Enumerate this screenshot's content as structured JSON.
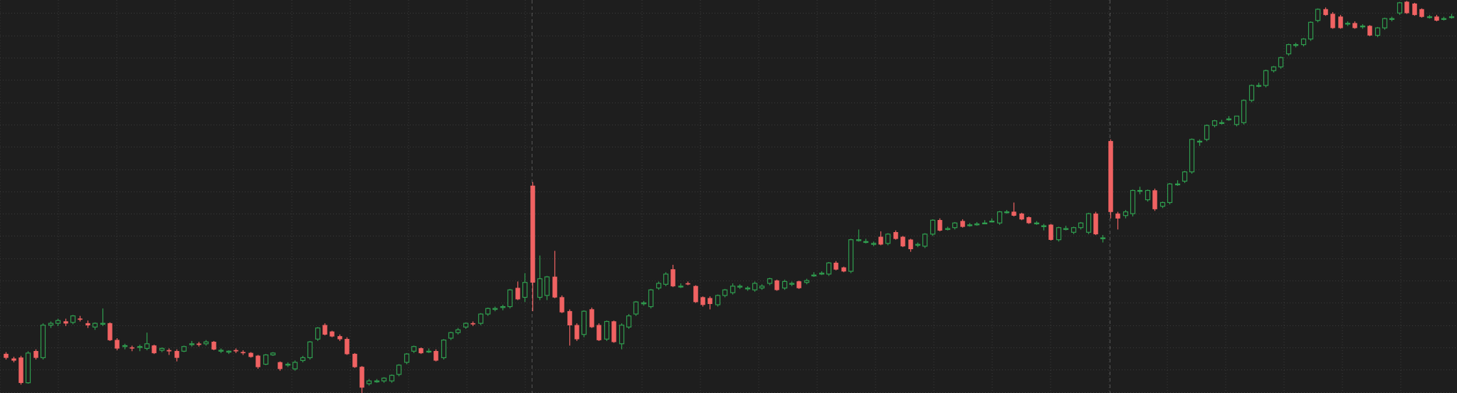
{
  "chart_data": {
    "type": "candlestick",
    "up_color": "#2f9e4f",
    "down_color": "#f06262",
    "up_hollow": true,
    "grid": true,
    "grid_color": "#3a3a3a",
    "ylim": [
      0,
      423
    ],
    "yticks": [
      1,
      25,
      49,
      73,
      97,
      121,
      145,
      169,
      193,
      217,
      241,
      265,
      289,
      313,
      337,
      361,
      385,
      409
    ],
    "candles": [
      [
        42,
        44,
        36,
        38
      ],
      [
        37,
        39,
        33,
        35
      ],
      [
        38,
        40,
        9,
        11
      ],
      [
        11,
        45,
        10,
        43
      ],
      [
        45,
        47,
        36,
        38
      ],
      [
        38,
        75,
        36,
        73
      ],
      [
        73,
        77,
        70,
        75
      ],
      [
        75,
        80,
        72,
        78
      ],
      [
        77,
        80,
        72,
        75
      ],
      [
        76,
        84,
        74,
        83
      ],
      [
        80,
        83,
        77,
        79
      ],
      [
        75,
        78,
        70,
        73
      ],
      [
        71,
        76,
        68,
        75
      ],
      [
        74,
        91,
        72,
        75
      ],
      [
        75,
        76,
        56,
        57
      ],
      [
        57,
        59,
        46,
        48
      ],
      [
        50,
        53,
        47,
        51
      ],
      [
        49,
        51,
        45,
        48
      ],
      [
        49,
        52,
        45,
        50
      ],
      [
        48,
        65,
        46,
        53
      ],
      [
        51,
        52,
        42,
        43
      ],
      [
        46,
        49,
        44,
        48
      ],
      [
        46,
        48,
        41,
        45
      ],
      [
        45,
        47,
        34,
        38
      ],
      [
        45,
        51,
        44,
        50
      ],
      [
        52,
        56,
        50,
        53
      ],
      [
        53,
        55,
        50,
        52
      ],
      [
        53,
        57,
        51,
        55
      ],
      [
        55,
        56,
        46,
        47
      ],
      [
        45,
        48,
        43,
        46
      ],
      [
        44,
        46,
        42,
        45
      ],
      [
        46,
        48,
        43,
        45
      ],
      [
        44,
        46,
        41,
        43
      ],
      [
        43,
        44,
        38,
        39
      ],
      [
        40,
        41,
        26,
        28
      ],
      [
        31,
        42,
        30,
        41
      ],
      [
        41,
        44,
        40,
        43
      ],
      [
        33,
        34,
        24,
        26
      ],
      [
        30,
        33,
        28,
        31
      ],
      [
        26,
        35,
        24,
        33
      ],
      [
        35,
        40,
        33,
        38
      ],
      [
        38,
        56,
        36,
        55
      ],
      [
        58,
        71,
        56,
        70
      ],
      [
        73,
        75,
        62,
        63
      ],
      [
        66,
        67,
        60,
        61
      ],
      [
        61,
        63,
        56,
        58
      ],
      [
        58,
        60,
        41,
        42
      ],
      [
        42,
        43,
        27,
        28
      ],
      [
        28,
        29,
        0,
        6
      ],
      [
        10,
        15,
        8,
        13
      ],
      [
        12,
        15,
        11,
        13
      ],
      [
        13,
        17,
        11,
        16
      ],
      [
        13,
        20,
        11,
        19
      ],
      [
        20,
        31,
        18,
        30
      ],
      [
        33,
        43,
        31,
        42
      ],
      [
        45,
        51,
        43,
        50
      ],
      [
        48,
        49,
        42,
        43
      ],
      [
        45,
        48,
        43,
        45
      ],
      [
        45,
        47,
        34,
        35
      ],
      [
        38,
        58,
        36,
        57
      ],
      [
        59,
        66,
        57,
        65
      ],
      [
        65,
        70,
        63,
        68
      ],
      [
        71,
        76,
        69,
        75
      ],
      [
        75,
        77,
        72,
        74
      ],
      [
        75,
        86,
        73,
        85
      ],
      [
        85,
        92,
        83,
        91
      ],
      [
        90,
        93,
        88,
        91
      ],
      [
        92,
        95,
        89,
        93
      ],
      [
        93,
        112,
        91,
        111
      ],
      [
        113,
        120,
        100,
        101
      ],
      [
        103,
        129,
        98,
        119
      ],
      [
        223,
        227,
        88,
        119
      ],
      [
        103,
        148,
        100,
        123
      ],
      [
        105,
        126,
        100,
        125
      ],
      [
        125,
        153,
        102,
        103
      ],
      [
        103,
        105,
        86,
        87
      ],
      [
        88,
        90,
        51,
        73
      ],
      [
        73,
        75,
        56,
        58
      ],
      [
        63,
        89,
        60,
        88
      ],
      [
        90,
        92,
        70,
        71
      ],
      [
        73,
        75,
        56,
        57
      ],
      [
        58,
        78,
        56,
        77
      ],
      [
        77,
        78,
        54,
        55
      ],
      [
        53,
        75,
        47,
        73
      ],
      [
        71,
        85,
        69,
        83
      ],
      [
        85,
        99,
        83,
        98
      ],
      [
        96,
        99,
        94,
        97
      ],
      [
        93,
        112,
        91,
        111
      ],
      [
        113,
        120,
        111,
        118
      ],
      [
        117,
        130,
        115,
        128
      ],
      [
        133,
        138,
        114,
        115
      ],
      [
        115,
        118,
        113,
        115
      ],
      [
        118,
        120,
        116,
        117
      ],
      [
        115,
        116,
        97,
        98
      ],
      [
        103,
        104,
        93,
        95
      ],
      [
        102,
        104,
        90,
        96
      ],
      [
        95,
        106,
        93,
        105
      ],
      [
        105,
        112,
        103,
        111
      ],
      [
        108,
        118,
        106,
        115
      ],
      [
        114,
        117,
        112,
        115
      ],
      [
        112,
        115,
        110,
        113
      ],
      [
        111,
        120,
        109,
        118
      ],
      [
        113,
        117,
        111,
        115
      ],
      [
        118,
        124,
        116,
        123
      ],
      [
        121,
        122,
        110,
        111
      ],
      [
        113,
        122,
        111,
        120
      ],
      [
        117,
        120,
        115,
        118
      ],
      [
        120,
        121,
        112,
        113
      ],
      [
        119,
        123,
        117,
        121
      ],
      [
        126,
        130,
        125,
        127
      ],
      [
        128,
        131,
        127,
        129
      ],
      [
        128,
        141,
        126,
        140
      ],
      [
        140,
        142,
        132,
        133
      ],
      [
        135,
        136,
        130,
        131
      ],
      [
        131,
        166,
        129,
        165
      ],
      [
        164,
        176,
        163,
        165
      ],
      [
        163,
        166,
        161,
        163
      ],
      [
        160,
        163,
        158,
        161
      ],
      [
        168,
        174,
        159,
        160
      ],
      [
        161,
        172,
        159,
        171
      ],
      [
        173,
        175,
        165,
        166
      ],
      [
        168,
        169,
        157,
        158
      ],
      [
        165,
        166,
        152,
        155
      ],
      [
        159,
        162,
        157,
        160
      ],
      [
        158,
        172,
        156,
        171
      ],
      [
        171,
        187,
        169,
        186
      ],
      [
        186,
        188,
        174,
        175
      ],
      [
        176,
        179,
        175,
        177
      ],
      [
        178,
        184,
        176,
        183
      ],
      [
        185,
        187,
        178,
        179
      ],
      [
        181,
        183,
        179,
        181
      ],
      [
        181,
        184,
        180,
        182
      ],
      [
        183,
        186,
        182,
        183
      ],
      [
        185,
        188,
        184,
        185
      ],
      [
        183,
        196,
        181,
        195
      ],
      [
        195,
        197,
        193,
        195
      ],
      [
        195,
        205,
        190,
        191
      ],
      [
        193,
        194,
        186,
        187
      ],
      [
        189,
        190,
        182,
        183
      ],
      [
        183,
        185,
        181,
        183
      ],
      [
        180,
        182,
        175,
        180
      ],
      [
        181,
        182,
        164,
        165
      ],
      [
        165,
        179,
        163,
        178
      ],
      [
        176,
        180,
        175,
        177
      ],
      [
        173,
        179,
        171,
        178
      ],
      [
        178,
        184,
        176,
        183
      ],
      [
        173,
        194,
        171,
        193
      ],
      [
        193,
        195,
        170,
        171
      ],
      [
        167,
        170,
        162,
        167
      ],
      [
        271,
        273,
        188,
        195
      ],
      [
        193,
        195,
        176,
        188
      ],
      [
        191,
        197,
        188,
        195
      ],
      [
        193,
        219,
        190,
        218
      ],
      [
        218,
        222,
        214,
        218
      ],
      [
        208,
        219,
        206,
        218
      ],
      [
        218,
        220,
        196,
        198
      ],
      [
        201,
        206,
        199,
        205
      ],
      [
        205,
        226,
        203,
        225
      ],
      [
        225,
        229,
        223,
        225
      ],
      [
        228,
        239,
        226,
        238
      ],
      [
        238,
        274,
        236,
        273
      ],
      [
        271,
        273,
        266,
        271
      ],
      [
        273,
        289,
        271,
        288
      ],
      [
        288,
        294,
        286,
        293
      ],
      [
        291,
        294,
        289,
        291
      ],
      [
        295,
        298,
        293,
        295
      ],
      [
        289,
        298,
        287,
        298
      ],
      [
        291,
        316,
        289,
        315
      ],
      [
        315,
        332,
        313,
        331
      ],
      [
        331,
        334,
        329,
        331
      ],
      [
        331,
        348,
        329,
        347
      ],
      [
        347,
        352,
        345,
        351
      ],
      [
        351,
        362,
        349,
        361
      ],
      [
        365,
        376,
        363,
        375
      ],
      [
        375,
        377,
        372,
        375
      ],
      [
        375,
        382,
        373,
        381
      ],
      [
        381,
        400,
        379,
        399
      ],
      [
        401,
        414,
        399,
        413
      ],
      [
        413,
        415,
        406,
        407
      ],
      [
        408,
        410,
        392,
        393
      ],
      [
        405,
        407,
        392,
        393
      ],
      [
        397,
        400,
        395,
        398
      ],
      [
        398,
        400,
        392,
        393
      ],
      [
        395,
        397,
        392,
        395
      ],
      [
        395,
        396,
        384,
        385
      ],
      [
        385,
        394,
        383,
        393
      ],
      [
        393,
        404,
        391,
        403
      ],
      [
        403,
        405,
        400,
        403
      ],
      [
        409,
        421,
        407,
        420
      ],
      [
        421,
        422,
        408,
        409
      ],
      [
        419,
        420,
        406,
        407
      ],
      [
        413,
        414,
        404,
        405
      ],
      [
        405,
        407,
        403,
        405
      ],
      [
        405,
        407,
        400,
        401
      ],
      [
        403,
        405,
        401,
        403
      ],
      [
        405,
        408,
        403,
        405
      ]
    ]
  }
}
